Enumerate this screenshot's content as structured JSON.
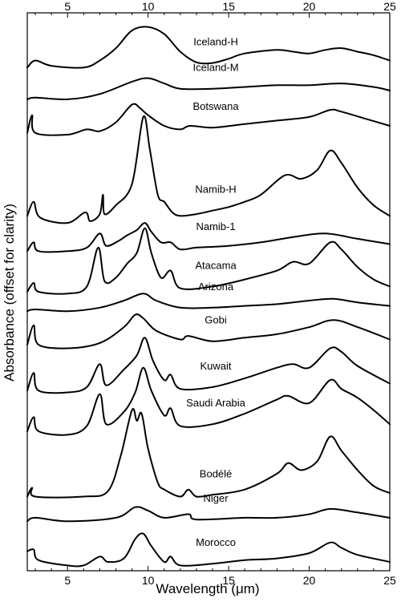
{
  "chart_data": {
    "type": "line",
    "title": "",
    "xlabel": "Wavelength (μm)",
    "ylabel": "Absorbance (offset for clarity)",
    "xlim": [
      2.5,
      25
    ],
    "x_ticks": [
      5,
      10,
      15,
      20,
      25
    ],
    "y_ticks_shown": false,
    "grid": false,
    "legend": "none (labels placed beside each curve)",
    "series": [
      {
        "name": "Iceland-H",
        "offset": 13.0,
        "baseline": [
          [
            2.5,
            0.05
          ],
          [
            3,
            0.25
          ],
          [
            4,
            0.1
          ],
          [
            6,
            0.05
          ],
          [
            7,
            0.25
          ],
          [
            8,
            0.6
          ],
          [
            9,
            1.1
          ],
          [
            10,
            1.2
          ],
          [
            11,
            1.0
          ],
          [
            12,
            0.5
          ],
          [
            13,
            0.2
          ],
          [
            14,
            0.18
          ],
          [
            15,
            0.3
          ],
          [
            16,
            0.45
          ],
          [
            18,
            0.55
          ],
          [
            19,
            0.5
          ],
          [
            20,
            0.45
          ],
          [
            21,
            0.55
          ],
          [
            22,
            0.6
          ],
          [
            23,
            0.5
          ],
          [
            24,
            0.4
          ],
          [
            25,
            0.25
          ]
        ]
      },
      {
        "name": "Iceland-M",
        "offset": 12.1,
        "baseline": [
          [
            2.5,
            0.05
          ],
          [
            3,
            0.1
          ],
          [
            5,
            0.05
          ],
          [
            7,
            0.2
          ],
          [
            9,
            0.55
          ],
          [
            10,
            0.65
          ],
          [
            11,
            0.5
          ],
          [
            12,
            0.35
          ],
          [
            14,
            0.35
          ],
          [
            16,
            0.4
          ],
          [
            18,
            0.45
          ],
          [
            20,
            0.45
          ],
          [
            22,
            0.5
          ],
          [
            24,
            0.4
          ],
          [
            25,
            0.3
          ]
        ]
      },
      {
        "name": "Botswana",
        "offset": 11.1,
        "baseline": [
          [
            2.5,
            0.1
          ],
          [
            2.8,
            0.6
          ],
          [
            3.0,
            0.1
          ],
          [
            5,
            0.05
          ],
          [
            6.2,
            0.2
          ],
          [
            7,
            0.15
          ],
          [
            8,
            0.4
          ],
          [
            9,
            0.9
          ],
          [
            9.5,
            0.8
          ],
          [
            10,
            0.6
          ],
          [
            11,
            0.3
          ],
          [
            12,
            0.2
          ],
          [
            12.6,
            0.3
          ],
          [
            14,
            0.25
          ],
          [
            16,
            0.35
          ],
          [
            18,
            0.45
          ],
          [
            20,
            0.55
          ],
          [
            21.3,
            0.75
          ],
          [
            22,
            0.7
          ],
          [
            23.5,
            0.5
          ],
          [
            25,
            0.3
          ]
        ]
      },
      {
        "name": "Namib-H",
        "offset": 8.55,
        "baseline": [
          [
            2.5,
            0.3
          ],
          [
            2.9,
            0.7
          ],
          [
            3.3,
            0.25
          ],
          [
            5,
            0.1
          ],
          [
            6.1,
            0.4
          ],
          [
            6.4,
            0.15
          ],
          [
            7,
            0.35
          ],
          [
            7.2,
            0.9
          ],
          [
            7.3,
            0.35
          ],
          [
            8,
            0.6
          ],
          [
            9,
            1.2
          ],
          [
            9.7,
            3.1
          ],
          [
            10.1,
            2.2
          ],
          [
            10.6,
            0.9
          ],
          [
            11,
            0.7
          ],
          [
            11.5,
            0.4
          ],
          [
            12,
            0.3
          ],
          [
            13,
            0.35
          ],
          [
            14,
            0.45
          ],
          [
            15,
            0.55
          ],
          [
            16,
            0.7
          ],
          [
            17,
            0.9
          ],
          [
            18.5,
            1.45
          ],
          [
            19.5,
            1.35
          ],
          [
            20.5,
            1.6
          ],
          [
            21.3,
            2.15
          ],
          [
            22,
            1.8
          ],
          [
            23,
            1.1
          ],
          [
            24,
            0.6
          ],
          [
            25,
            0.3
          ]
        ]
      },
      {
        "name": "Namib-1",
        "offset": 7.8,
        "baseline": [
          [
            2.5,
            0.05
          ],
          [
            2.9,
            0.3
          ],
          [
            3.2,
            0.05
          ],
          [
            5,
            0.05
          ],
          [
            6.2,
            0.15
          ],
          [
            7,
            0.55
          ],
          [
            7.4,
            0.2
          ],
          [
            8.2,
            0.35
          ],
          [
            8.7,
            0.5
          ],
          [
            9.3,
            0.65
          ],
          [
            9.8,
            0.85
          ],
          [
            10.2,
            0.6
          ],
          [
            10.8,
            0.3
          ],
          [
            11.4,
            0.3
          ],
          [
            12,
            0.1
          ],
          [
            13,
            0.15
          ],
          [
            15,
            0.2
          ],
          [
            17,
            0.3
          ],
          [
            19,
            0.45
          ],
          [
            21,
            0.55
          ],
          [
            23,
            0.4
          ],
          [
            25,
            0.25
          ]
        ]
      },
      {
        "name": "Atacama",
        "offset": 6.6,
        "baseline": [
          [
            2.5,
            0.1
          ],
          [
            2.9,
            0.35
          ],
          [
            3.2,
            0.1
          ],
          [
            5,
            0.05
          ],
          [
            6.2,
            0.25
          ],
          [
            6.9,
            1.35
          ],
          [
            7.3,
            0.4
          ],
          [
            8,
            0.5
          ],
          [
            8.7,
            0.9
          ],
          [
            9.3,
            1.2
          ],
          [
            9.8,
            1.9
          ],
          [
            10.2,
            1.2
          ],
          [
            10.8,
            0.5
          ],
          [
            11.4,
            0.7
          ],
          [
            12,
            0.2
          ],
          [
            14,
            0.25
          ],
          [
            16,
            0.45
          ],
          [
            18,
            0.7
          ],
          [
            19,
            0.95
          ],
          [
            20,
            0.9
          ],
          [
            21.3,
            1.5
          ],
          [
            22,
            1.3
          ],
          [
            23,
            0.8
          ],
          [
            24,
            0.45
          ],
          [
            25,
            0.25
          ]
        ]
      },
      {
        "name": "Arizona",
        "offset": 6.1,
        "baseline": [
          [
            2.5,
            0.05
          ],
          [
            3,
            0.1
          ],
          [
            5,
            0.05
          ],
          [
            7,
            0.15
          ],
          [
            8.5,
            0.35
          ],
          [
            9.7,
            0.55
          ],
          [
            10.5,
            0.35
          ],
          [
            12,
            0.15
          ],
          [
            14,
            0.15
          ],
          [
            16,
            0.2
          ],
          [
            18,
            0.25
          ],
          [
            20,
            0.35
          ],
          [
            21.5,
            0.4
          ],
          [
            23,
            0.3
          ],
          [
            25,
            0.2
          ]
        ]
      },
      {
        "name": "Gobi",
        "offset": 4.9,
        "baseline": [
          [
            2.5,
            0.3
          ],
          [
            2.9,
            0.85
          ],
          [
            3.2,
            0.3
          ],
          [
            5,
            0.2
          ],
          [
            7,
            0.35
          ],
          [
            8.5,
            0.8
          ],
          [
            9.2,
            1.15
          ],
          [
            9.7,
            1.05
          ],
          [
            10.5,
            0.7
          ],
          [
            12,
            0.45
          ],
          [
            12.5,
            0.55
          ],
          [
            14,
            0.4
          ],
          [
            16,
            0.5
          ],
          [
            18,
            0.6
          ],
          [
            20,
            0.8
          ],
          [
            21.5,
            1.0
          ],
          [
            23,
            0.8
          ],
          [
            25,
            0.45
          ]
        ]
      },
      {
        "name": "Kuwait",
        "offset": 3.8,
        "baseline": [
          [
            2.5,
            0.1
          ],
          [
            2.9,
            0.6
          ],
          [
            3.2,
            0.1
          ],
          [
            5,
            0.05
          ],
          [
            6.2,
            0.2
          ],
          [
            7,
            0.85
          ],
          [
            7.4,
            0.25
          ],
          [
            8.5,
            0.7
          ],
          [
            9.3,
            1.1
          ],
          [
            9.8,
            1.6
          ],
          [
            10.3,
            0.95
          ],
          [
            11,
            0.4
          ],
          [
            11.4,
            0.55
          ],
          [
            12,
            0.15
          ],
          [
            14,
            0.2
          ],
          [
            16,
            0.45
          ],
          [
            18,
            0.75
          ],
          [
            19,
            0.85
          ],
          [
            20,
            0.75
          ],
          [
            21.3,
            1.3
          ],
          [
            22,
            1.2
          ],
          [
            23,
            0.8
          ],
          [
            25,
            0.3
          ]
        ]
      },
      {
        "name": "Saudi Arabia",
        "offset": 2.6,
        "baseline": [
          [
            2.5,
            0.15
          ],
          [
            2.9,
            0.55
          ],
          [
            3.2,
            0.15
          ],
          [
            5,
            0.05
          ],
          [
            6.2,
            0.3
          ],
          [
            7,
            1.2
          ],
          [
            7.4,
            0.35
          ],
          [
            8.5,
            0.7
          ],
          [
            9.2,
            1.25
          ],
          [
            9.7,
            1.95
          ],
          [
            10.2,
            1.3
          ],
          [
            11,
            0.6
          ],
          [
            11.4,
            0.8
          ],
          [
            12,
            0.3
          ],
          [
            14,
            0.35
          ],
          [
            16,
            0.65
          ],
          [
            18,
            1.05
          ],
          [
            18.7,
            1.15
          ],
          [
            20,
            0.95
          ],
          [
            21.3,
            1.6
          ],
          [
            22,
            1.35
          ],
          [
            23,
            1.1
          ],
          [
            24,
            0.75
          ],
          [
            25,
            0.35
          ]
        ]
      },
      {
        "name": "Bodélé",
        "offset": 0.85,
        "baseline": [
          [
            2.5,
            0.05
          ],
          [
            2.8,
            0.3
          ],
          [
            3,
            0.05
          ],
          [
            6,
            0.05
          ],
          [
            7.5,
            0.2
          ],
          [
            8.3,
            1.2
          ],
          [
            9,
            2.5
          ],
          [
            9.3,
            2.2
          ],
          [
            9.6,
            2.4
          ],
          [
            10,
            1.4
          ],
          [
            10.6,
            0.45
          ],
          [
            11,
            0.25
          ],
          [
            12,
            0.05
          ],
          [
            12.5,
            0.25
          ],
          [
            13,
            0.05
          ],
          [
            14,
            0.1
          ],
          [
            16,
            0.25
          ],
          [
            18,
            0.7
          ],
          [
            18.7,
            1.0
          ],
          [
            19.5,
            0.8
          ],
          [
            20.5,
            1.05
          ],
          [
            21.3,
            1.75
          ],
          [
            22,
            1.35
          ],
          [
            23,
            0.8
          ],
          [
            24,
            0.35
          ],
          [
            25,
            0.15
          ]
        ]
      },
      {
        "name": "Niger",
        "offset": 0.15,
        "baseline": [
          [
            2.5,
            0.05
          ],
          [
            3,
            0.15
          ],
          [
            5,
            0.05
          ],
          [
            8,
            0.15
          ],
          [
            9.2,
            0.45
          ],
          [
            10,
            0.35
          ],
          [
            11,
            0.15
          ],
          [
            12.5,
            0.25
          ],
          [
            13,
            0.1
          ],
          [
            16,
            0.15
          ],
          [
            18,
            0.15
          ],
          [
            20,
            0.25
          ],
          [
            21.3,
            0.4
          ],
          [
            23,
            0.3
          ],
          [
            25,
            0.15
          ]
        ]
      },
      {
        "name": "Morocco",
        "offset": -1.1,
        "baseline": [
          [
            2.5,
            0.45
          ],
          [
            2.9,
            0.5
          ],
          [
            3.2,
            0.2
          ],
          [
            5,
            0.05
          ],
          [
            6,
            0.05
          ],
          [
            7,
            0.3
          ],
          [
            7.5,
            0.15
          ],
          [
            8.5,
            0.25
          ],
          [
            9.2,
            0.8
          ],
          [
            9.7,
            0.95
          ],
          [
            10.2,
            0.6
          ],
          [
            11,
            0.15
          ],
          [
            11.4,
            0.3
          ],
          [
            12,
            0.05
          ],
          [
            14,
            0.1
          ],
          [
            16,
            0.2
          ],
          [
            18,
            0.25
          ],
          [
            20,
            0.4
          ],
          [
            21.3,
            0.7
          ],
          [
            22,
            0.55
          ],
          [
            23,
            0.35
          ],
          [
            25,
            0.15
          ]
        ]
      }
    ]
  }
}
